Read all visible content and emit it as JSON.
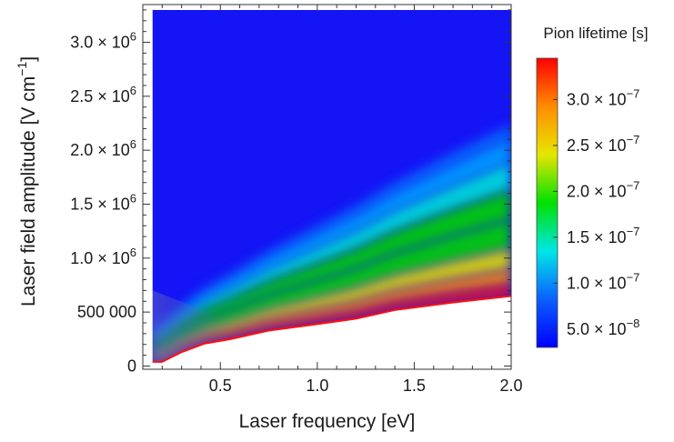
{
  "chart_data": {
    "type": "heatmap",
    "xlabel": "Laser frequency  [eV]",
    "ylabel": "Laser field amplitude [V cm",
    "ylabel_exp": "−1",
    "ylabel_close": "]",
    "xlim": [
      0.1,
      2.0
    ],
    "ylim": [
      -30000,
      3350000
    ],
    "x_ticks": [
      {
        "value": 0.5,
        "label": "0.5"
      },
      {
        "value": 1.0,
        "label": "1.0"
      },
      {
        "value": 1.5,
        "label": "1.5"
      },
      {
        "value": 2.0,
        "label": "2.0"
      }
    ],
    "y_ticks": [
      {
        "value": 0,
        "mantissa": "0",
        "exp": ""
      },
      {
        "value": 500000,
        "mantissa": "500 000",
        "exp": ""
      },
      {
        "value": 1000000,
        "mantissa": "1.0 × 10",
        "exp": "6"
      },
      {
        "value": 1500000,
        "mantissa": "1.5 × 10",
        "exp": "6"
      },
      {
        "value": 2000000,
        "mantissa": "2.0 × 10",
        "exp": "6"
      },
      {
        "value": 2500000,
        "mantissa": "2.5 × 10",
        "exp": "6"
      },
      {
        "value": 3000000,
        "mantissa": "3.0 × 10",
        "exp": "6"
      }
    ],
    "boundary": {
      "x": [
        0.15,
        0.2,
        0.3,
        0.42,
        0.55,
        0.75,
        1.0,
        1.2,
        1.4,
        1.7,
        2.0
      ],
      "y": [
        30000,
        30000,
        120000,
        200000,
        240000,
        320000,
        380000,
        430000,
        510000,
        580000,
        640000
      ]
    },
    "colorbar": {
      "title": "Pion lifetime [s]",
      "range": [
        3e-08,
        3.45e-07
      ],
      "ticks": [
        {
          "value": 5e-08,
          "mantissa": "5.0 × 10",
          "exp": "−8"
        },
        {
          "value": 1e-07,
          "mantissa": "1.0 × 10",
          "exp": "−7"
        },
        {
          "value": 1.5e-07,
          "mantissa": "1.5 × 10",
          "exp": "−7"
        },
        {
          "value": 2e-07,
          "mantissa": "2.0 × 10",
          "exp": "−7"
        },
        {
          "value": 2.5e-07,
          "mantissa": "2.5 × 10",
          "exp": "−7"
        },
        {
          "value": 3e-07,
          "mantissa": "3.0 × 10",
          "exp": "−7"
        }
      ],
      "colors": [
        "#0000ff",
        "#0a60ff",
        "#00e6e6",
        "#00e000",
        "#e6e600",
        "#ff8c00",
        "#ff0000"
      ]
    },
    "field_colors": {
      "background": "#1414f5",
      "band_light_blue": "#00a0ff",
      "band_cyan": "#00e0d8",
      "band_green": "#00d400",
      "band_yellow": "#e0e000",
      "band_orange": "#ff9000",
      "band_red": "#ff1010"
    }
  }
}
